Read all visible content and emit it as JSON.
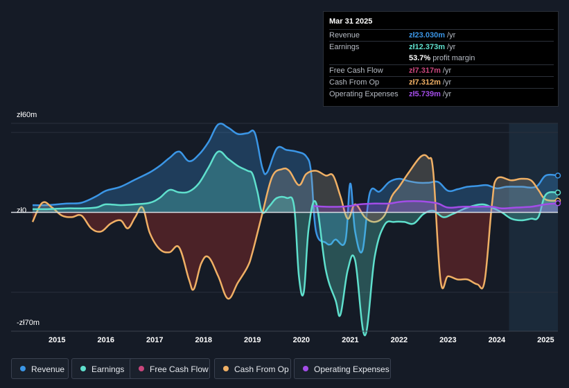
{
  "chart_data": {
    "type": "area",
    "xlabel": "",
    "ylabel": "",
    "ylim": [
      -70,
      60
    ],
    "y_ticks": [
      {
        "value": 60,
        "label": "zł60m"
      },
      {
        "value": 0,
        "label": "zł0"
      },
      {
        "value": -70,
        "label": "-zł70m"
      }
    ],
    "x_ticks": [
      "2015",
      "2016",
      "2017",
      "2018",
      "2019",
      "2020",
      "2021",
      "2022",
      "2023",
      "2024",
      "2025"
    ],
    "x_tick_values": [
      2015,
      2016,
      2017,
      2018,
      2019,
      2020,
      2021,
      2022,
      2023,
      2024,
      2025
    ],
    "xlim": [
      2014.5,
      2025.25
    ],
    "forecast_start": 2024.25,
    "series": [
      {
        "name": "Revenue",
        "color": "#3b96e6",
        "fill": true,
        "points": [
          [
            2014.5,
            4.5
          ],
          [
            2014.8,
            4.5
          ],
          [
            2015.2,
            5.5
          ],
          [
            2015.5,
            6
          ],
          [
            2015.8,
            10
          ],
          [
            2016,
            13.5
          ],
          [
            2016.3,
            16
          ],
          [
            2016.6,
            20.5
          ],
          [
            2016.9,
            25
          ],
          [
            2017.1,
            29
          ],
          [
            2017.3,
            34
          ],
          [
            2017.5,
            38
          ],
          [
            2017.7,
            32
          ],
          [
            2017.9,
            36
          ],
          [
            2018.1,
            44
          ],
          [
            2018.3,
            55
          ],
          [
            2018.5,
            53
          ],
          [
            2018.7,
            49
          ],
          [
            2018.9,
            49.5
          ],
          [
            2019.05,
            49.5
          ],
          [
            2019.2,
            28
          ],
          [
            2019.3,
            25
          ],
          [
            2019.5,
            40
          ],
          [
            2019.7,
            39
          ],
          [
            2019.9,
            38
          ],
          [
            2020.1,
            35
          ],
          [
            2020.2,
            25
          ],
          [
            2020.3,
            -12
          ],
          [
            2020.5,
            -19
          ],
          [
            2020.6,
            -20
          ],
          [
            2020.7,
            -17
          ],
          [
            2020.9,
            -18
          ],
          [
            2021.0,
            18
          ],
          [
            2021.1,
            -12
          ],
          [
            2021.25,
            -24
          ],
          [
            2021.4,
            12
          ],
          [
            2021.6,
            13
          ],
          [
            2021.8,
            19
          ],
          [
            2022.0,
            21
          ],
          [
            2022.2,
            19.5
          ],
          [
            2022.4,
            18.5
          ],
          [
            2022.6,
            18.5
          ],
          [
            2022.8,
            19
          ],
          [
            2023.0,
            13.5
          ],
          [
            2023.2,
            14.5
          ],
          [
            2023.4,
            16
          ],
          [
            2023.6,
            16.5
          ],
          [
            2023.8,
            17
          ],
          [
            2024.0,
            15
          ],
          [
            2024.2,
            16
          ],
          [
            2024.5,
            16
          ],
          [
            2024.8,
            16
          ],
          [
            2025.0,
            23
          ],
          [
            2025.25,
            23
          ]
        ]
      },
      {
        "name": "Earnings",
        "color": "#5fe0cd",
        "fill": true,
        "points": [
          [
            2014.5,
            2
          ],
          [
            2014.8,
            2
          ],
          [
            2015.2,
            2.5
          ],
          [
            2015.5,
            2.5
          ],
          [
            2015.8,
            3
          ],
          [
            2016.0,
            5
          ],
          [
            2016.3,
            4.5
          ],
          [
            2016.6,
            5
          ],
          [
            2016.9,
            6
          ],
          [
            2017.1,
            9
          ],
          [
            2017.3,
            14
          ],
          [
            2017.5,
            12.5
          ],
          [
            2017.7,
            13
          ],
          [
            2017.9,
            18
          ],
          [
            2018.1,
            28
          ],
          [
            2018.3,
            38
          ],
          [
            2018.5,
            33.5
          ],
          [
            2018.7,
            29
          ],
          [
            2018.9,
            26
          ],
          [
            2019.0,
            24
          ],
          [
            2019.1,
            13
          ],
          [
            2019.2,
            0
          ],
          [
            2019.35,
            4
          ],
          [
            2019.5,
            9
          ],
          [
            2019.7,
            9
          ],
          [
            2019.85,
            4
          ],
          [
            2019.95,
            -40
          ],
          [
            2020.05,
            -50
          ],
          [
            2020.15,
            -10
          ],
          [
            2020.3,
            6
          ],
          [
            2020.5,
            -36
          ],
          [
            2020.7,
            -55
          ],
          [
            2020.8,
            -64
          ],
          [
            2020.95,
            -36
          ],
          [
            2021.1,
            -30
          ],
          [
            2021.3,
            -77
          ],
          [
            2021.5,
            -28
          ],
          [
            2021.7,
            -8
          ],
          [
            2021.9,
            -6
          ],
          [
            2022.1,
            -6
          ],
          [
            2022.3,
            -7
          ],
          [
            2022.5,
            -1
          ],
          [
            2022.7,
            1
          ],
          [
            2022.9,
            -3
          ],
          [
            2023.1,
            -1
          ],
          [
            2023.4,
            3
          ],
          [
            2023.7,
            5
          ],
          [
            2023.9,
            3
          ],
          [
            2024.1,
            0
          ],
          [
            2024.3,
            -4
          ],
          [
            2024.5,
            -5
          ],
          [
            2024.7,
            -4
          ],
          [
            2024.85,
            -3
          ],
          [
            2025.0,
            11
          ],
          [
            2025.25,
            12.4
          ]
        ]
      },
      {
        "name": "Free Cash Flow",
        "color": "#c8467c",
        "fill": false,
        "points": []
      },
      {
        "name": "Cash From Op",
        "color": "#f0b065",
        "fill": true,
        "points": [
          [
            2014.5,
            -6
          ],
          [
            2014.7,
            6
          ],
          [
            2014.9,
            3
          ],
          [
            2015.1,
            -2
          ],
          [
            2015.3,
            -3
          ],
          [
            2015.5,
            -2
          ],
          [
            2015.7,
            -10
          ],
          [
            2015.9,
            -12
          ],
          [
            2016.1,
            -7
          ],
          [
            2016.3,
            -5
          ],
          [
            2016.45,
            -10
          ],
          [
            2016.6,
            -3
          ],
          [
            2016.75,
            3
          ],
          [
            2016.9,
            -13
          ],
          [
            2017.1,
            -23
          ],
          [
            2017.3,
            -25
          ],
          [
            2017.5,
            -22
          ],
          [
            2017.7,
            -42
          ],
          [
            2017.8,
            -48
          ],
          [
            2017.95,
            -32
          ],
          [
            2018.1,
            -28
          ],
          [
            2018.3,
            -40
          ],
          [
            2018.5,
            -54
          ],
          [
            2018.7,
            -44
          ],
          [
            2018.9,
            -34
          ],
          [
            2019.0,
            -25
          ],
          [
            2019.2,
            -1
          ],
          [
            2019.4,
            22
          ],
          [
            2019.6,
            27
          ],
          [
            2019.75,
            26
          ],
          [
            2019.95,
            17
          ],
          [
            2020.1,
            24
          ],
          [
            2020.3,
            26
          ],
          [
            2020.5,
            23
          ],
          [
            2020.65,
            23
          ],
          [
            2020.8,
            10
          ],
          [
            2020.95,
            -4
          ],
          [
            2021.1,
            5
          ],
          [
            2021.3,
            -3
          ],
          [
            2021.5,
            -6
          ],
          [
            2021.7,
            -2
          ],
          [
            2021.85,
            10
          ],
          [
            2022.0,
            16
          ],
          [
            2022.2,
            25
          ],
          [
            2022.45,
            35
          ],
          [
            2022.6,
            34
          ],
          [
            2022.7,
            25
          ],
          [
            2022.85,
            -43
          ],
          [
            2023.0,
            -40
          ],
          [
            2023.2,
            -42
          ],
          [
            2023.4,
            -42
          ],
          [
            2023.6,
            -45
          ],
          [
            2023.75,
            -43
          ],
          [
            2023.9,
            5
          ],
          [
            2024.0,
            21
          ],
          [
            2024.3,
            20
          ],
          [
            2024.5,
            21
          ],
          [
            2024.7,
            20
          ],
          [
            2024.85,
            14
          ],
          [
            2025.0,
            8
          ],
          [
            2025.25,
            7.3
          ]
        ]
      },
      {
        "name": "Operating Expenses",
        "color": "#a34de8",
        "fill": true,
        "points": [
          [
            2020.25,
            4
          ],
          [
            2020.5,
            3.5
          ],
          [
            2020.8,
            3.5
          ],
          [
            2021.0,
            4
          ],
          [
            2021.2,
            5
          ],
          [
            2021.5,
            5.5
          ],
          [
            2021.8,
            5.5
          ],
          [
            2022.0,
            6.5
          ],
          [
            2022.3,
            7
          ],
          [
            2022.6,
            6.5
          ],
          [
            2022.8,
            5.5
          ],
          [
            2023.0,
            3
          ],
          [
            2023.3,
            3.5
          ],
          [
            2023.6,
            3.5
          ],
          [
            2023.9,
            3.5
          ],
          [
            2024.1,
            2.5
          ],
          [
            2024.4,
            3
          ],
          [
            2024.7,
            3.5
          ],
          [
            2025.0,
            5
          ],
          [
            2025.25,
            5.7
          ]
        ]
      }
    ]
  },
  "tooltip": {
    "date": "Mar 31 2025",
    "rows": [
      {
        "label": "Revenue",
        "value": "zł23.030m",
        "unit": " /yr",
        "color": "#3b96e6"
      },
      {
        "label": "Earnings",
        "value": "zł12.373m",
        "unit": " /yr",
        "color": "#5fe0cd"
      },
      {
        "label": "",
        "value": "53.7%",
        "unit": " profit margin",
        "color": "#ffffff"
      },
      {
        "label": "Free Cash Flow",
        "value": "zł7.317m",
        "unit": " /yr",
        "color": "#c8467c"
      },
      {
        "label": "Cash From Op",
        "value": "zł7.312m",
        "unit": " /yr",
        "color": "#f0b065"
      },
      {
        "label": "Operating Expenses",
        "value": "zł5.739m",
        "unit": " /yr",
        "color": "#a34de8"
      }
    ]
  },
  "legend": [
    {
      "label": "Revenue",
      "color": "#3b96e6"
    },
    {
      "label": "Earnings",
      "color": "#5fe0cd"
    },
    {
      "label": "Free Cash Flow",
      "color": "#c8467c"
    },
    {
      "label": "Cash From Op",
      "color": "#f0b065"
    },
    {
      "label": "Operating Expenses",
      "color": "#a34de8"
    }
  ]
}
